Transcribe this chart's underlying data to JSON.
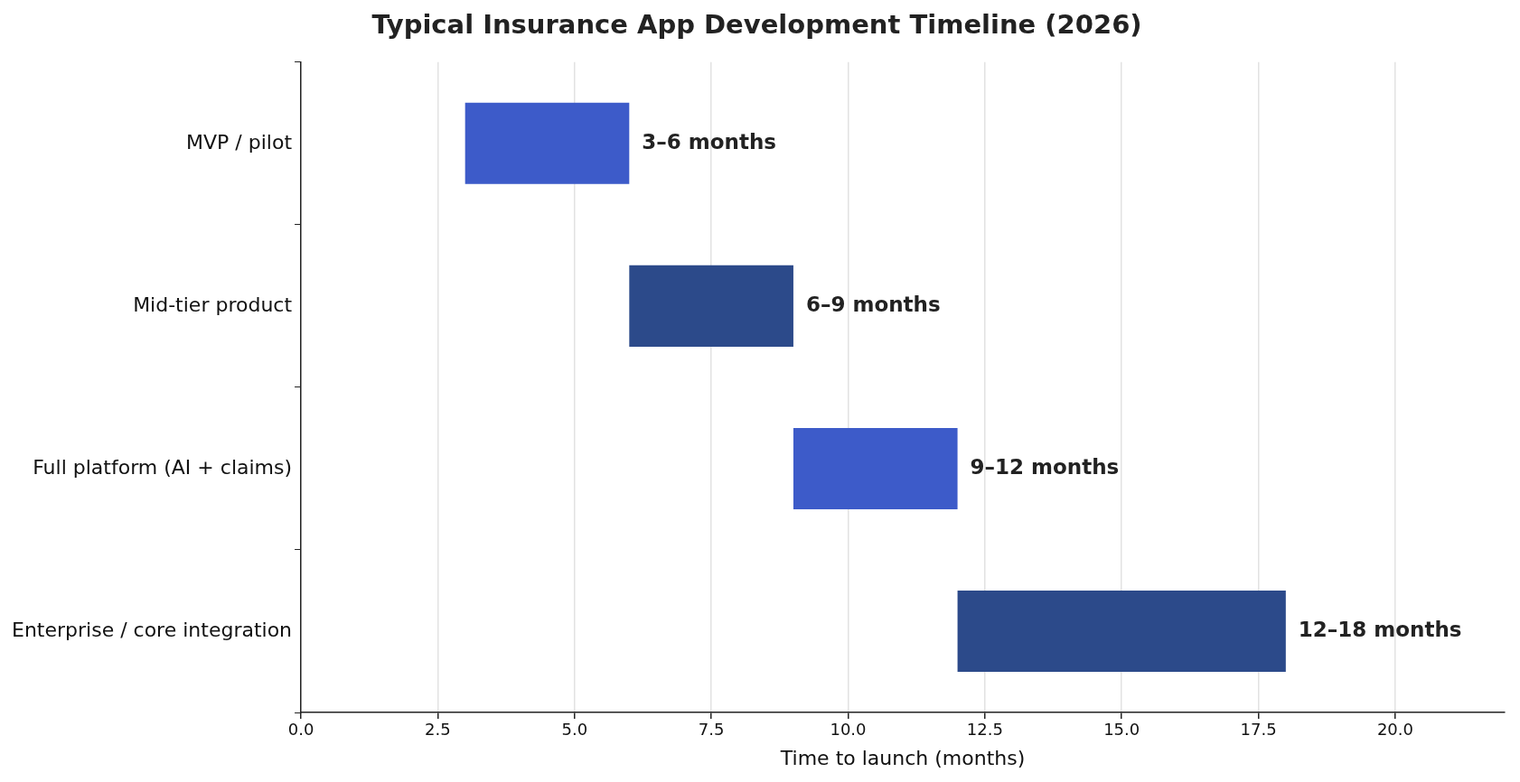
{
  "chart_data": {
    "type": "bar",
    "orientation": "horizontal",
    "title": "Typical Insurance App Development Timeline (2026)",
    "xlabel": "Time to launch (months)",
    "categories": [
      "MVP / pilot",
      "Mid-tier product",
      "Full platform (AI + claims)",
      "Enterprise / core integration"
    ],
    "base": [
      3,
      6,
      9,
      12
    ],
    "values": [
      3,
      3,
      3,
      6
    ],
    "colors": [
      "#3d5bc9",
      "#2c4a8a",
      "#3d5bc9",
      "#2c4a8a"
    ],
    "value_labels": [
      "3–6 months",
      "6–9 months",
      "9–12 months",
      "12–18 months"
    ],
    "xlim": [
      0,
      22
    ],
    "xticks": [
      {
        "value": 0,
        "label": "0.0"
      },
      {
        "value": 2.5,
        "label": "2.5"
      },
      {
        "value": 5,
        "label": "5.0"
      },
      {
        "value": 7.5,
        "label": "7.5"
      },
      {
        "value": 10,
        "label": "10.0"
      },
      {
        "value": 12.5,
        "label": "12.5"
      },
      {
        "value": 15,
        "label": "15.0"
      },
      {
        "value": 17.5,
        "label": "17.5"
      },
      {
        "value": 20,
        "label": "20.0"
      }
    ],
    "grid": "x"
  }
}
